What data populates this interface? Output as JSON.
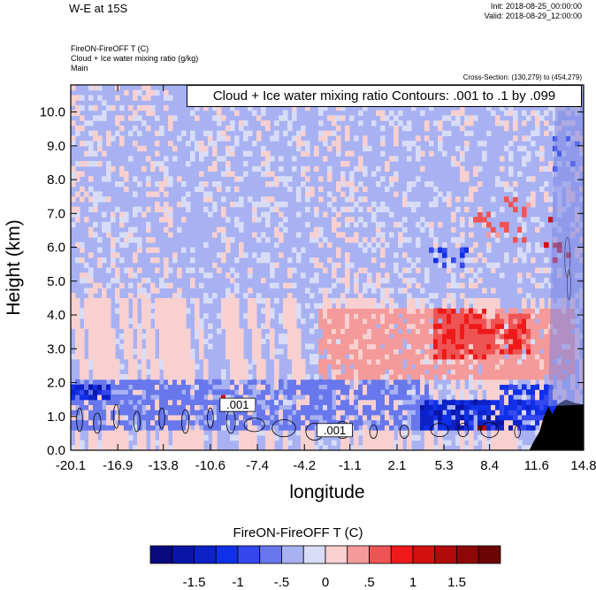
{
  "header": {
    "title": "W-E at 15S",
    "init": "Init: 2018-08-25_00:00:00",
    "valid": "Valid: 2018-08-29_12:00:00",
    "field_line": "FireON-FireOFF T   (C)",
    "contour_field_line": "Cloud + Ice water mixing ratio   (g/kg)",
    "domain_line": "Main",
    "cross_section": "Cross-Section: (130,279) to (454,279)",
    "contour_info": "Cloud + Ice water mixing ratio Contours: .001 to .1 by .099"
  },
  "chart_data": {
    "type": "heatmap",
    "title": "W-E at 15S",
    "xlabel": "longitude",
    "ylabel": "Height (km)",
    "xlim": [
      -20.1,
      14.8
    ],
    "ylim": [
      0.0,
      10.8
    ],
    "x_ticks": [
      "-20.1",
      "-16.9",
      "-13.8",
      "-10.6",
      "-7.4",
      "-4.2",
      "-1.1",
      "2.1",
      "5.3",
      "8.4",
      "11.6",
      "14.8"
    ],
    "x_tick_values": [
      -20.1,
      -16.9,
      -13.8,
      -10.6,
      -7.4,
      -4.2,
      -1.1,
      2.1,
      5.3,
      8.4,
      11.6,
      14.8
    ],
    "y_ticks": [
      "0.0",
      "1.0",
      "2.0",
      "3.0",
      "4.0",
      "5.0",
      "6.0",
      "7.0",
      "8.0",
      "9.0",
      "10.0"
    ],
    "y_tick_values": [
      0,
      1,
      2,
      3,
      4,
      5,
      6,
      7,
      8,
      9,
      10
    ],
    "shaded_field": "FireON-FireOFF T (C)",
    "contour_field": "Cloud + Ice water mixing ratio (g/kg)",
    "contour_levels": [
      0.001,
      0.1
    ],
    "contour_labels": [
      ".001",
      ".001"
    ],
    "colorbar": {
      "title": "FireON-FireOFF T  (C)",
      "levels": [
        -1.75,
        -1.5,
        -1.25,
        -1,
        -0.75,
        -0.5,
        -0.25,
        0,
        0.25,
        0.5,
        0.75,
        1,
        1.25,
        1.5,
        1.75
      ],
      "colors": [
        "#0a0a80",
        "#0a15a8",
        "#0c22c8",
        "#1030e8",
        "#3548f0",
        "#6878ec",
        "#a8b2f2",
        "#d8dcf6",
        "#f8d0d0",
        "#f59a9a",
        "#ef5454",
        "#ee1a1a",
        "#d40f0f",
        "#b00a0a",
        "#8e0808",
        "#6c0505"
      ],
      "tick_labels": [
        "-1.5",
        "-1",
        "-.5",
        "0",
        ".5",
        "1",
        "1.5"
      ],
      "tick_values": [
        -1.5,
        -1,
        -0.5,
        0,
        0.5,
        1,
        1.5
      ]
    },
    "features": [
      {
        "kind": "warm_blob",
        "x": [
          -3.5,
          14.0
        ],
        "y": [
          2.0,
          4.2
        ],
        "value": 0.4
      },
      {
        "kind": "warm_blob",
        "x": [
          4.5,
          8.0
        ],
        "y": [
          2.6,
          4.2
        ],
        "value": 0.8
      },
      {
        "kind": "warm_blob",
        "x": [
          7.0,
          11.0
        ],
        "y": [
          6.1,
          7.4
        ],
        "value": 0.6
      },
      {
        "kind": "warm_blob",
        "x": [
          12.0,
          13.6
        ],
        "y": [
          5.5,
          6.9
        ],
        "value": 1.3
      },
      {
        "kind": "warm_blob",
        "x": [
          5.0,
          11.0
        ],
        "y": [
          2.8,
          4.0
        ],
        "value": 0.7
      },
      {
        "kind": "warm_blob",
        "x": [
          7.5,
          9.6
        ],
        "y": [
          0.5,
          0.75
        ],
        "value": 1.6
      },
      {
        "kind": "warm_blob",
        "x": [
          -11.2,
          -9.6
        ],
        "y": [
          1.25,
          1.6
        ],
        "value": 1.3
      },
      {
        "kind": "cool_blob",
        "x": [
          -20.1,
          4.0
        ],
        "y": [
          0.5,
          2.0
        ],
        "value": -0.6
      },
      {
        "kind": "cool_blob",
        "x": [
          3.5,
          12.8
        ],
        "y": [
          0.5,
          1.4
        ],
        "value": -1.3
      },
      {
        "kind": "cool_blob",
        "x": [
          9.0,
          12.5
        ],
        "y": [
          0.8,
          1.9
        ],
        "value": -1.0
      },
      {
        "kind": "cool_blob",
        "x": [
          -20.1,
          -17.6
        ],
        "y": [
          1.5,
          1.9
        ],
        "value": -1.3
      },
      {
        "kind": "cool_blob",
        "x": [
          12.5,
          14.4
        ],
        "y": [
          8.2,
          9.2
        ],
        "value": -0.9
      },
      {
        "kind": "cool_blob",
        "x": [
          4.0,
          7.0
        ],
        "y": [
          5.3,
          5.9
        ],
        "value": -0.9
      },
      {
        "kind": "cool_blob",
        "x": [
          -20.1,
          14.8
        ],
        "y": [
          4.5,
          10.8
        ],
        "value": -0.3
      }
    ]
  }
}
